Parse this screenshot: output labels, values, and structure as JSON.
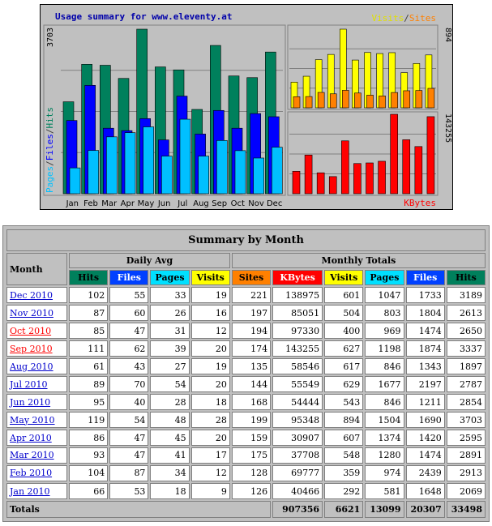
{
  "graph": {
    "title": "Usage summary for www.eleventy.at",
    "left_axis_max": "3703",
    "right_top_axis_max": "894",
    "right_bottom_axis_max": "143255",
    "legend_pages": "Pages",
    "legend_files": "Files",
    "legend_hits": "Hits",
    "legend_visits": "Visits",
    "legend_sites": "Sites",
    "legend_kbytes": "KBytes",
    "sep": "/",
    "colors": {
      "hits": "#00805c",
      "files": "#0000ff",
      "pages": "#00c0ff",
      "visits": "#ffff00",
      "sites": "#ff8000",
      "kbytes": "#ff0000"
    }
  },
  "chart_data": [
    {
      "type": "bar",
      "title": "Usage summary for www.eleventy.at",
      "categories": [
        "Jan",
        "Feb",
        "Mar",
        "Apr",
        "May",
        "Jun",
        "Jul",
        "Aug",
        "Sep",
        "Oct",
        "Nov",
        "Dec"
      ],
      "ylim": [
        0,
        3703
      ],
      "series": [
        {
          "name": "Hits",
          "values": [
            2069,
            2913,
            2891,
            2595,
            3703,
            2854,
            2787,
            1897,
            3337,
            2650,
            2613,
            3189
          ]
        },
        {
          "name": "Files",
          "values": [
            1648,
            2439,
            1474,
            1420,
            1690,
            1211,
            2197,
            1343,
            1874,
            1474,
            1804,
            1733
          ]
        },
        {
          "name": "Pages",
          "values": [
            581,
            974,
            1280,
            1374,
            1504,
            846,
            1677,
            846,
            1198,
            969,
            803,
            1047
          ]
        }
      ]
    },
    {
      "type": "bar",
      "categories": [
        "Jan",
        "Feb",
        "Mar",
        "Apr",
        "May",
        "Jun",
        "Jul",
        "Aug",
        "Sep",
        "Oct",
        "Nov",
        "Dec"
      ],
      "ylim": [
        0,
        894
      ],
      "series": [
        {
          "name": "Visits",
          "values": [
            292,
            359,
            548,
            607,
            894,
            543,
            629,
            617,
            627,
            400,
            504,
            601
          ]
        },
        {
          "name": "Sites",
          "values": [
            126,
            128,
            175,
            159,
            199,
            168,
            144,
            135,
            174,
            194,
            197,
            221
          ]
        }
      ]
    },
    {
      "type": "bar",
      "categories": [
        "Jan",
        "Feb",
        "Mar",
        "Apr",
        "May",
        "Jun",
        "Jul",
        "Aug",
        "Sep",
        "Oct",
        "Nov",
        "Dec"
      ],
      "ylim": [
        0,
        143255
      ],
      "series": [
        {
          "name": "KBytes",
          "values": [
            40466,
            69777,
            37708,
            30907,
            95348,
            54444,
            55549,
            58546,
            143255,
            97330,
            85051,
            138975
          ]
        }
      ]
    }
  ],
  "table": {
    "title": "Summary by Month",
    "month_label": "Month",
    "daily_avg_label": "Daily Avg",
    "monthly_totals_label": "Monthly Totals",
    "cols_daily": [
      "Hits",
      "Files",
      "Pages",
      "Visits"
    ],
    "cols_monthly": [
      "Sites",
      "KBytes",
      "Visits",
      "Pages",
      "Files",
      "Hits"
    ],
    "rows": [
      {
        "month": "Dec 2010",
        "d_hits": "102",
        "d_files": "55",
        "d_pages": "33",
        "d_visits": "19",
        "sites": "221",
        "kbytes": "138975",
        "visits": "601",
        "pages": "1047",
        "files": "1733",
        "hits": "3189",
        "visited": false
      },
      {
        "month": "Nov 2010",
        "d_hits": "87",
        "d_files": "60",
        "d_pages": "26",
        "d_visits": "16",
        "sites": "197",
        "kbytes": "85051",
        "visits": "504",
        "pages": "803",
        "files": "1804",
        "hits": "2613",
        "visited": false
      },
      {
        "month": "Oct 2010",
        "d_hits": "85",
        "d_files": "47",
        "d_pages": "31",
        "d_visits": "12",
        "sites": "194",
        "kbytes": "97330",
        "visits": "400",
        "pages": "969",
        "files": "1474",
        "hits": "2650",
        "visited": true
      },
      {
        "month": "Sep 2010",
        "d_hits": "111",
        "d_files": "62",
        "d_pages": "39",
        "d_visits": "20",
        "sites": "174",
        "kbytes": "143255",
        "visits": "627",
        "pages": "1198",
        "files": "1874",
        "hits": "3337",
        "visited": true
      },
      {
        "month": "Aug 2010",
        "d_hits": "61",
        "d_files": "43",
        "d_pages": "27",
        "d_visits": "19",
        "sites": "135",
        "kbytes": "58546",
        "visits": "617",
        "pages": "846",
        "files": "1343",
        "hits": "1897",
        "visited": false
      },
      {
        "month": "Jul 2010",
        "d_hits": "89",
        "d_files": "70",
        "d_pages": "54",
        "d_visits": "20",
        "sites": "144",
        "kbytes": "55549",
        "visits": "629",
        "pages": "1677",
        "files": "2197",
        "hits": "2787",
        "visited": false
      },
      {
        "month": "Jun 2010",
        "d_hits": "95",
        "d_files": "40",
        "d_pages": "28",
        "d_visits": "18",
        "sites": "168",
        "kbytes": "54444",
        "visits": "543",
        "pages": "846",
        "files": "1211",
        "hits": "2854",
        "visited": false
      },
      {
        "month": "May 2010",
        "d_hits": "119",
        "d_files": "54",
        "d_pages": "48",
        "d_visits": "28",
        "sites": "199",
        "kbytes": "95348",
        "visits": "894",
        "pages": "1504",
        "files": "1690",
        "hits": "3703",
        "visited": false
      },
      {
        "month": "Apr 2010",
        "d_hits": "86",
        "d_files": "47",
        "d_pages": "45",
        "d_visits": "20",
        "sites": "159",
        "kbytes": "30907",
        "visits": "607",
        "pages": "1374",
        "files": "1420",
        "hits": "2595",
        "visited": false
      },
      {
        "month": "Mar 2010",
        "d_hits": "93",
        "d_files": "47",
        "d_pages": "41",
        "d_visits": "17",
        "sites": "175",
        "kbytes": "37708",
        "visits": "548",
        "pages": "1280",
        "files": "1474",
        "hits": "2891",
        "visited": false
      },
      {
        "month": "Feb 2010",
        "d_hits": "104",
        "d_files": "87",
        "d_pages": "34",
        "d_visits": "12",
        "sites": "128",
        "kbytes": "69777",
        "visits": "359",
        "pages": "974",
        "files": "2439",
        "hits": "2913",
        "visited": false
      },
      {
        "month": "Jan 2010",
        "d_hits": "66",
        "d_files": "53",
        "d_pages": "18",
        "d_visits": "9",
        "sites": "126",
        "kbytes": "40466",
        "visits": "292",
        "pages": "581",
        "files": "1648",
        "hits": "2069",
        "visited": false
      }
    ],
    "totals": {
      "label": "Totals",
      "kbytes": "907356",
      "visits": "6621",
      "pages": "13099",
      "files": "20307",
      "hits": "33498"
    }
  }
}
